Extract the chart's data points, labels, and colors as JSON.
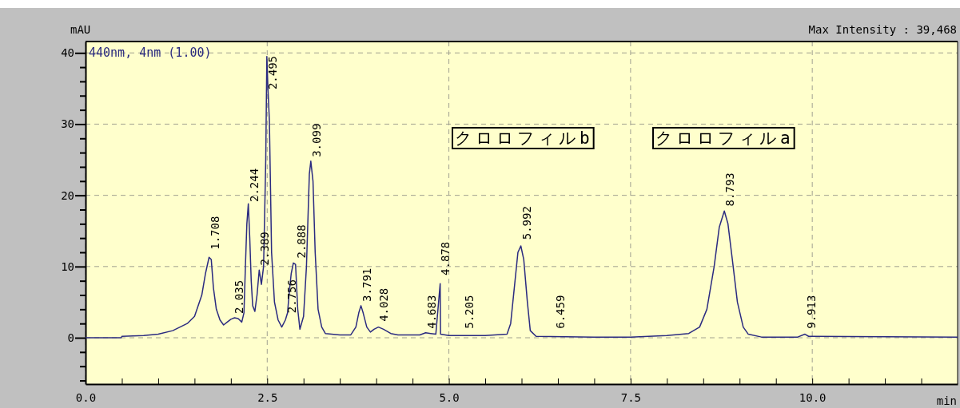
{
  "chart_data": {
    "type": "line",
    "subtitle": "Max Intensity :  39,468",
    "xlabel": "min",
    "ylabel": "mAU",
    "xlim": [
      0,
      12
    ],
    "ylim": [
      -6.5,
      41.6
    ],
    "xticks": [
      {
        "value": 0,
        "label": "0.0"
      },
      {
        "value": 0.5,
        "label": null
      },
      {
        "value": 1,
        "label": null
      },
      {
        "value": 1.5,
        "label": null
      },
      {
        "value": 2,
        "label": null
      },
      {
        "value": 2.5,
        "label": "2.5"
      },
      {
        "value": 3,
        "label": null
      },
      {
        "value": 3.5,
        "label": null
      },
      {
        "value": 4,
        "label": null
      },
      {
        "value": 4.5,
        "label": null
      },
      {
        "value": 5,
        "label": "5.0"
      },
      {
        "value": 5.5,
        "label": null
      },
      {
        "value": 6,
        "label": null
      },
      {
        "value": 6.5,
        "label": null
      },
      {
        "value": 7,
        "label": null
      },
      {
        "value": 7.5,
        "label": "7.5"
      },
      {
        "value": 8,
        "label": null
      },
      {
        "value": 8.5,
        "label": null
      },
      {
        "value": 9,
        "label": null
      },
      {
        "value": 9.5,
        "label": null
      },
      {
        "value": 10,
        "label": "10.0"
      },
      {
        "value": 10.5,
        "label": null
      },
      {
        "value": 11,
        "label": null
      },
      {
        "value": 11.5,
        "label": null
      }
    ],
    "yticks": [
      {
        "value": -6,
        "label": null
      },
      {
        "value": -4,
        "label": null
      },
      {
        "value": -2,
        "label": null
      },
      0,
      {
        "value": 2,
        "label": null
      },
      {
        "value": 4,
        "label": null
      },
      {
        "value": 6,
        "label": null
      },
      {
        "value": 8,
        "label": null
      },
      10,
      {
        "value": 12,
        "label": null
      },
      {
        "value": 14,
        "label": null
      },
      {
        "value": 16,
        "label": null
      },
      {
        "value": 18,
        "label": null
      },
      20,
      {
        "value": 22,
        "label": null
      },
      {
        "value": 24,
        "label": null
      },
      {
        "value": 26,
        "label": null
      },
      {
        "value": 28,
        "label": null
      },
      30,
      {
        "value": 32,
        "label": null
      },
      {
        "value": 34,
        "label": null
      },
      {
        "value": 36,
        "label": null
      },
      {
        "value": 38,
        "label": null
      },
      40
    ],
    "grid": true,
    "legend": "top left",
    "line_style": "solid",
    "marker": "none",
    "series": [
      {
        "name": "440nm, 4nm (1.00)",
        "color": "#2b2b80",
        "x": [
          0,
          0.49,
          0.5,
          0.8,
          1.0,
          1.2,
          1.4,
          1.5,
          1.6,
          1.65,
          1.7,
          1.73,
          1.76,
          1.8,
          1.85,
          1.9,
          1.95,
          2.0,
          2.05,
          2.1,
          2.15,
          2.18,
          2.2,
          2.22,
          2.24,
          2.26,
          2.28,
          2.3,
          2.33,
          2.36,
          2.39,
          2.42,
          2.45,
          2.48,
          2.495,
          2.51,
          2.53,
          2.56,
          2.6,
          2.65,
          2.7,
          2.75,
          2.78,
          2.8,
          2.83,
          2.86,
          2.89,
          2.92,
          2.95,
          3.0,
          3.04,
          3.08,
          3.1,
          3.13,
          3.16,
          3.2,
          3.25,
          3.3,
          3.5,
          3.65,
          3.72,
          3.76,
          3.79,
          3.82,
          3.87,
          3.92,
          3.97,
          4.03,
          4.1,
          4.2,
          4.3,
          4.6,
          4.68,
          4.75,
          4.82,
          4.88,
          4.885,
          5.0,
          5.5,
          5.8,
          5.85,
          5.9,
          5.95,
          5.99,
          6.03,
          6.08,
          6.12,
          6.2,
          7.0,
          7.5,
          8.0,
          8.3,
          8.45,
          8.55,
          8.65,
          8.72,
          8.79,
          8.84,
          8.9,
          8.97,
          9.05,
          9.12,
          9.3,
          9.8,
          9.9,
          9.95,
          12.0
        ],
        "values": [
          0,
          0,
          0.2,
          0.3,
          0.5,
          1.0,
          2.0,
          3,
          6,
          9,
          11.3,
          11,
          7,
          4,
          2.5,
          1.8,
          2.2,
          2.6,
          2.8,
          2.7,
          2.2,
          3.5,
          10,
          16,
          18.8,
          14,
          8,
          4.5,
          3.7,
          6,
          9.5,
          7.5,
          10,
          25,
          39.5,
          35,
          30.5,
          12,
          5,
          2.5,
          1.5,
          2.5,
          3.5,
          6,
          9,
          10.5,
          10.3,
          4,
          1.2,
          3,
          10,
          23,
          24.8,
          22,
          12,
          4,
          1.5,
          0.6,
          0.4,
          0.4,
          1.5,
          3.5,
          4.5,
          3.5,
          1.5,
          0.8,
          1.2,
          1.5,
          1.2,
          0.6,
          0.4,
          0.4,
          0.7,
          0.6,
          0.5,
          7.6,
          0.5,
          0.3,
          0.3,
          0.5,
          2,
          7,
          12,
          12.9,
          11,
          5,
          1,
          0.2,
          0.1,
          0.1,
          0.3,
          0.6,
          1.5,
          4,
          10,
          15.5,
          17.8,
          16,
          11,
          5,
          1.5,
          0.5,
          0.1,
          0.1,
          0.5,
          0.2,
          0.1
        ]
      }
    ],
    "annotations": [
      {
        "text": "1.708",
        "x": 1.708,
        "y": 11.8
      },
      {
        "text": "2.035",
        "x": 2.035,
        "y": 2.8
      },
      {
        "text": "2.244",
        "x": 2.244,
        "y": 18.5
      },
      {
        "text": "2.389",
        "x": 2.389,
        "y": 9.6
      },
      {
        "text": "2.495",
        "x": 2.495,
        "y": 34.3
      },
      {
        "text": "2.756",
        "x": 2.756,
        "y": 2.9
      },
      {
        "text": "2.888",
        "x": 2.888,
        "y": 10.6
      },
      {
        "text": "3.099",
        "x": 3.099,
        "y": 24.8
      },
      {
        "text": "3.791",
        "x": 3.791,
        "y": 4.5
      },
      {
        "text": "4.028",
        "x": 4.028,
        "y": 1.7
      },
      {
        "text": "4.683",
        "x": 4.683,
        "y": 0.7
      },
      {
        "text": "4.878",
        "x": 4.878,
        "y": 8.2
      },
      {
        "text": "5.205",
        "x": 5.205,
        "y": 0.7
      },
      {
        "text": "5.992",
        "x": 5.992,
        "y": 13.2
      },
      {
        "text": "6.459",
        "x": 6.459,
        "y": 0.7
      },
      {
        "text": "8.793",
        "x": 8.793,
        "y": 17.9
      },
      {
        "text": "9.913",
        "x": 9.913,
        "y": 0.7
      },
      "クロロフィルb",
      "クロロフィルa"
    ]
  }
}
